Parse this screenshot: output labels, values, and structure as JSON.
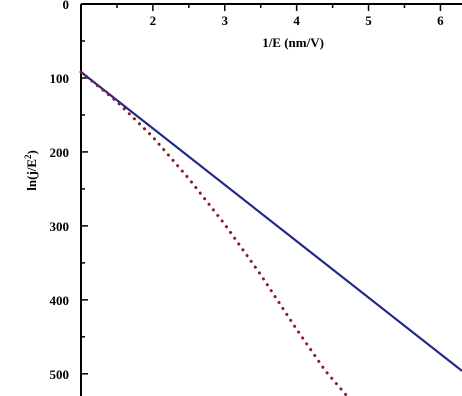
{
  "chart_data": {
    "type": "line",
    "xlabel": "1/E (nm/V)",
    "ylabel": "ln(j/E²)",
    "ylabel_parts": {
      "base": "ln(j/E",
      "sup": "2",
      "end": ")"
    },
    "xlim": [
      1.0,
      6.3
    ],
    "ylim": [
      530,
      0
    ],
    "y_inverted": true,
    "x_axis_position": "top",
    "x_ticks": [
      2,
      3,
      4,
      5,
      6
    ],
    "x_tick_labels": [
      "2",
      "3",
      "4",
      "5",
      "6"
    ],
    "y_ticks": [
      0,
      100,
      200,
      300,
      400,
      500
    ],
    "y_tick_labels": [
      "0",
      "100",
      "200",
      "300",
      "400",
      "500"
    ],
    "grid": false,
    "series": [
      {
        "style": "solid",
        "color": "#1f2a8c",
        "x": [
          1.0,
          6.3
        ],
        "y": [
          92,
          496
        ]
      },
      {
        "style": "dotted",
        "color": "#8b1a2b",
        "x": [
          1.0,
          1.5,
          2.0,
          2.5,
          3.0,
          3.5,
          4.0,
          4.4,
          4.7
        ],
        "y": [
          92,
          132,
          180,
          236,
          298,
          366,
          440,
          496,
          530
        ]
      }
    ]
  }
}
